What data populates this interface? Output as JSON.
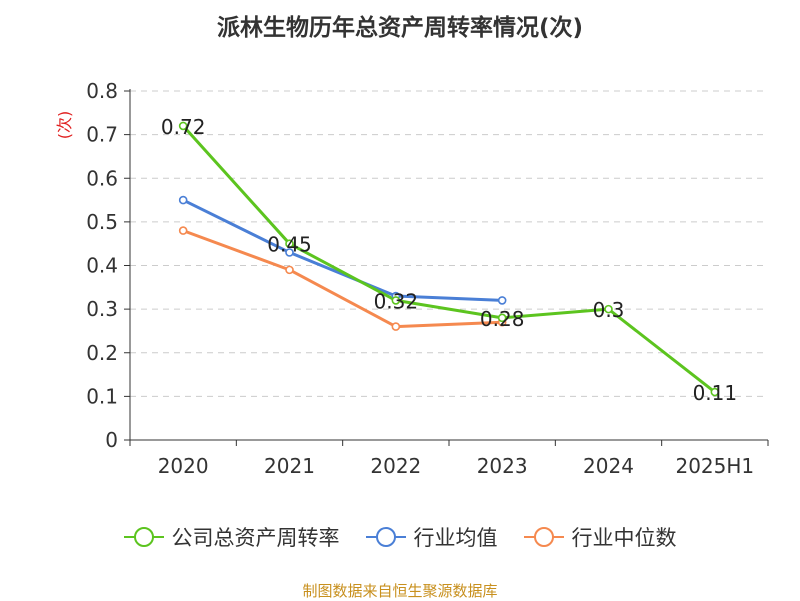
{
  "title": "派林生物历年总资产周转率情况(次)",
  "source": "制图数据来自恒生聚源数据库",
  "chart_data": {
    "type": "line",
    "title": "派林生物历年总资产周转率情况(次)",
    "ylabel": "(次)",
    "xlabel": "",
    "categories": [
      "2020",
      "2021",
      "2022",
      "2023",
      "2024",
      "2025H1"
    ],
    "ylim": [
      0,
      0.8
    ],
    "yticks": [
      "0",
      "0.1",
      "0.2",
      "0.3",
      "0.4",
      "0.5",
      "0.6",
      "0.7",
      "0.8"
    ],
    "grid": true,
    "legend_position": "bottom",
    "series": [
      {
        "name": "公司总资产周转率",
        "color": "#5cc41f",
        "values": [
          0.72,
          0.45,
          0.32,
          0.28,
          0.3,
          0.11
        ],
        "labels": [
          "0.72",
          "0.45",
          "0.32",
          "0.28",
          "0.3",
          "0.11"
        ]
      },
      {
        "name": "行业均值",
        "color": "#4a7fd6",
        "values": [
          0.55,
          0.43,
          0.33,
          0.32,
          null,
          null
        ]
      },
      {
        "name": "行业中位数",
        "color": "#f5894f",
        "values": [
          0.48,
          0.39,
          0.26,
          0.27,
          null,
          null
        ]
      }
    ]
  }
}
